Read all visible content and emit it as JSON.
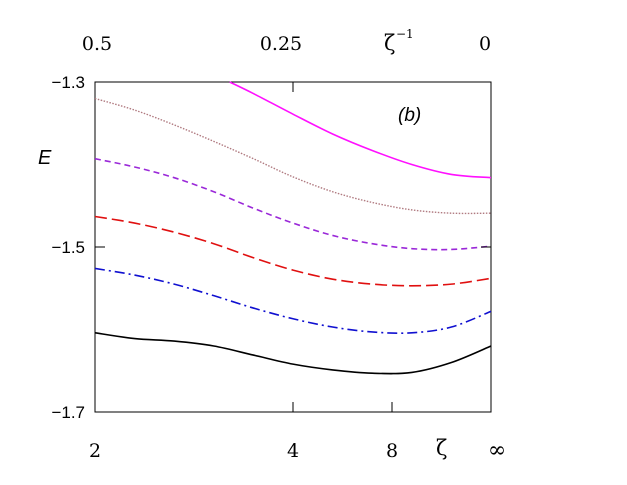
{
  "chart_data": {
    "type": "line",
    "panel_label": "(b)",
    "ylabel": "E",
    "xlabel_bottom": "ζ",
    "xlabel_top": "ζ",
    "xlabel_top_superscript": "−1",
    "x_axis": "reciprocal",
    "ylim": [
      -1.7,
      -1.3
    ],
    "y_ticks": [
      {
        "value": -1.3,
        "label": "−1.3"
      },
      {
        "value": -1.5,
        "label": "−1.5"
      },
      {
        "value": -1.7,
        "label": "−1.7"
      }
    ],
    "x_ticks_bottom": [
      {
        "value": 2,
        "label": "2"
      },
      {
        "value": 4,
        "label": "4"
      },
      {
        "value": 8,
        "label": "8"
      },
      {
        "value": "inf",
        "label": "∞"
      }
    ],
    "x_ticks_top": [
      {
        "value": 0.5,
        "label": "0.5"
      },
      {
        "value": 0.25,
        "label": "0.25"
      },
      {
        "value": 0,
        "label": "0"
      }
    ],
    "grid": false,
    "series": [
      {
        "color": "#000000",
        "style": "solid",
        "x": [
          0.5,
          0.45,
          0.4,
          0.35,
          0.3,
          0.25,
          0.2,
          0.15,
          0.1,
          0.05,
          0.0
        ],
        "y": [
          -1.604,
          -1.611,
          -1.614,
          -1.62,
          -1.631,
          -1.642,
          -1.649,
          -1.653,
          -1.652,
          -1.64,
          -1.62
        ]
      },
      {
        "color": "#1010d0",
        "style": "dashdot",
        "x": [
          0.5,
          0.45,
          0.4,
          0.35,
          0.3,
          0.25,
          0.2,
          0.15,
          0.1,
          0.05,
          0.0
        ],
        "y": [
          -1.526,
          -1.534,
          -1.545,
          -1.559,
          -1.574,
          -1.587,
          -1.597,
          -1.603,
          -1.604,
          -1.597,
          -1.578
        ]
      },
      {
        "color": "#e01010",
        "style": "dashed",
        "x": [
          0.5,
          0.45,
          0.4,
          0.35,
          0.3,
          0.25,
          0.2,
          0.15,
          0.1,
          0.05,
          0.0
        ],
        "y": [
          -1.463,
          -1.471,
          -1.482,
          -1.496,
          -1.513,
          -1.528,
          -1.539,
          -1.545,
          -1.547,
          -1.545,
          -1.538
        ]
      },
      {
        "color": "#9a28d8",
        "style": "shortdash",
        "x": [
          0.5,
          0.45,
          0.4,
          0.35,
          0.3,
          0.25,
          0.2,
          0.15,
          0.1,
          0.05,
          0.0
        ],
        "y": [
          -1.393,
          -1.403,
          -1.416,
          -1.433,
          -1.453,
          -1.471,
          -1.486,
          -1.496,
          -1.502,
          -1.503,
          -1.499
        ]
      },
      {
        "color": "#b07a80",
        "style": "dotted",
        "x": [
          0.5,
          0.45,
          0.4,
          0.35,
          0.3,
          0.25,
          0.2,
          0.15,
          0.1,
          0.05,
          0.0
        ],
        "y": [
          -1.32,
          -1.334,
          -1.352,
          -1.372,
          -1.393,
          -1.415,
          -1.433,
          -1.446,
          -1.455,
          -1.459,
          -1.459
        ]
      },
      {
        "color": "#ff10ff",
        "style": "solid",
        "x": [
          0.33,
          0.3,
          0.25,
          0.2,
          0.15,
          0.1,
          0.05,
          0.0
        ],
        "y": [
          -1.3,
          -1.314,
          -1.339,
          -1.363,
          -1.383,
          -1.4,
          -1.412,
          -1.416
        ]
      }
    ]
  }
}
